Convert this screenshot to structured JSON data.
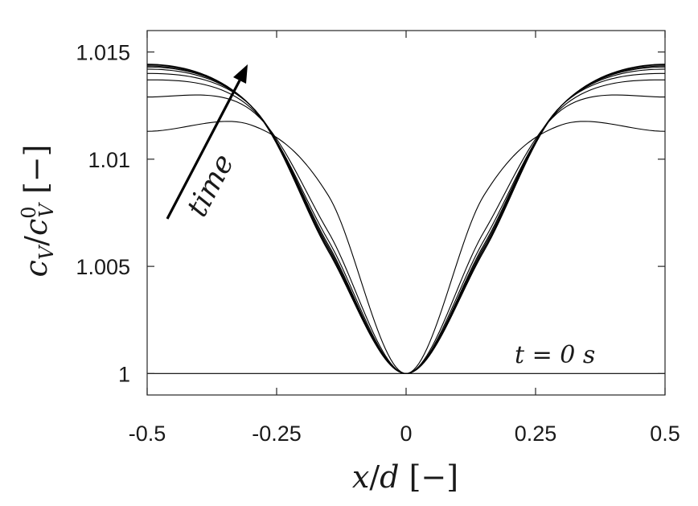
{
  "chart_data": {
    "type": "line",
    "xlabel": "x/d [−]",
    "ylabel": "c_V/c_V^0 [−]",
    "xlim": [
      -0.5,
      0.5
    ],
    "ylim": [
      0.999,
      1.016
    ],
    "xticks": [
      "-0.5",
      "-0.25",
      "0",
      "0.25",
      "0.5"
    ],
    "yticks": [
      "1",
      "1.005",
      "1.01",
      "1.015"
    ],
    "grid": false,
    "annotations": {
      "arrow_label": "time",
      "t0_label": "t = 0 s"
    },
    "series_count": 10,
    "series": [
      {
        "values_at_x": {
          "-0.5": 1.0,
          "-0.3": 1.0,
          "-0.15": 1.0,
          "0": 1.0
        }
      },
      {
        "values_at_x": {
          "-0.5": 1.0113,
          "-0.3": 1.0116,
          "-0.15": 1.0083,
          "0": 1.0
        }
      },
      {
        "values_at_x": {
          "-0.5": 1.0129,
          "-0.3": 1.0123,
          "-0.15": 1.0066,
          "0": 1.0
        }
      },
      {
        "values_at_x": {
          "-0.5": 1.0137,
          "-0.3": 1.0124,
          "-0.15": 1.0062,
          "0": 1.0
        }
      },
      {
        "values_at_x": {
          "-0.5": 1.014,
          "-0.3": 1.0125,
          "-0.15": 1.006,
          "0": 1.0
        }
      },
      {
        "values_at_x": {
          "-0.5": 1.0142,
          "-0.3": 1.0125,
          "-0.15": 1.0059,
          "0": 1.0
        }
      },
      {
        "values_at_x": {
          "-0.5": 1.0143,
          "-0.3": 1.0125,
          "-0.15": 1.0058,
          "0": 1.0
        }
      },
      {
        "values_at_x": {
          "-0.5": 1.01435,
          "-0.3": 1.0125,
          "-0.15": 1.0058,
          "0": 1.0
        }
      },
      {
        "values_at_x": {
          "-0.5": 1.0144,
          "-0.3": 1.0125,
          "-0.15": 1.0057,
          "0": 1.0
        }
      },
      {
        "values_at_x": {
          "-0.5": 1.01443,
          "-0.3": 1.0125,
          "-0.15": 1.0057,
          "0": 1.0
        }
      }
    ]
  }
}
